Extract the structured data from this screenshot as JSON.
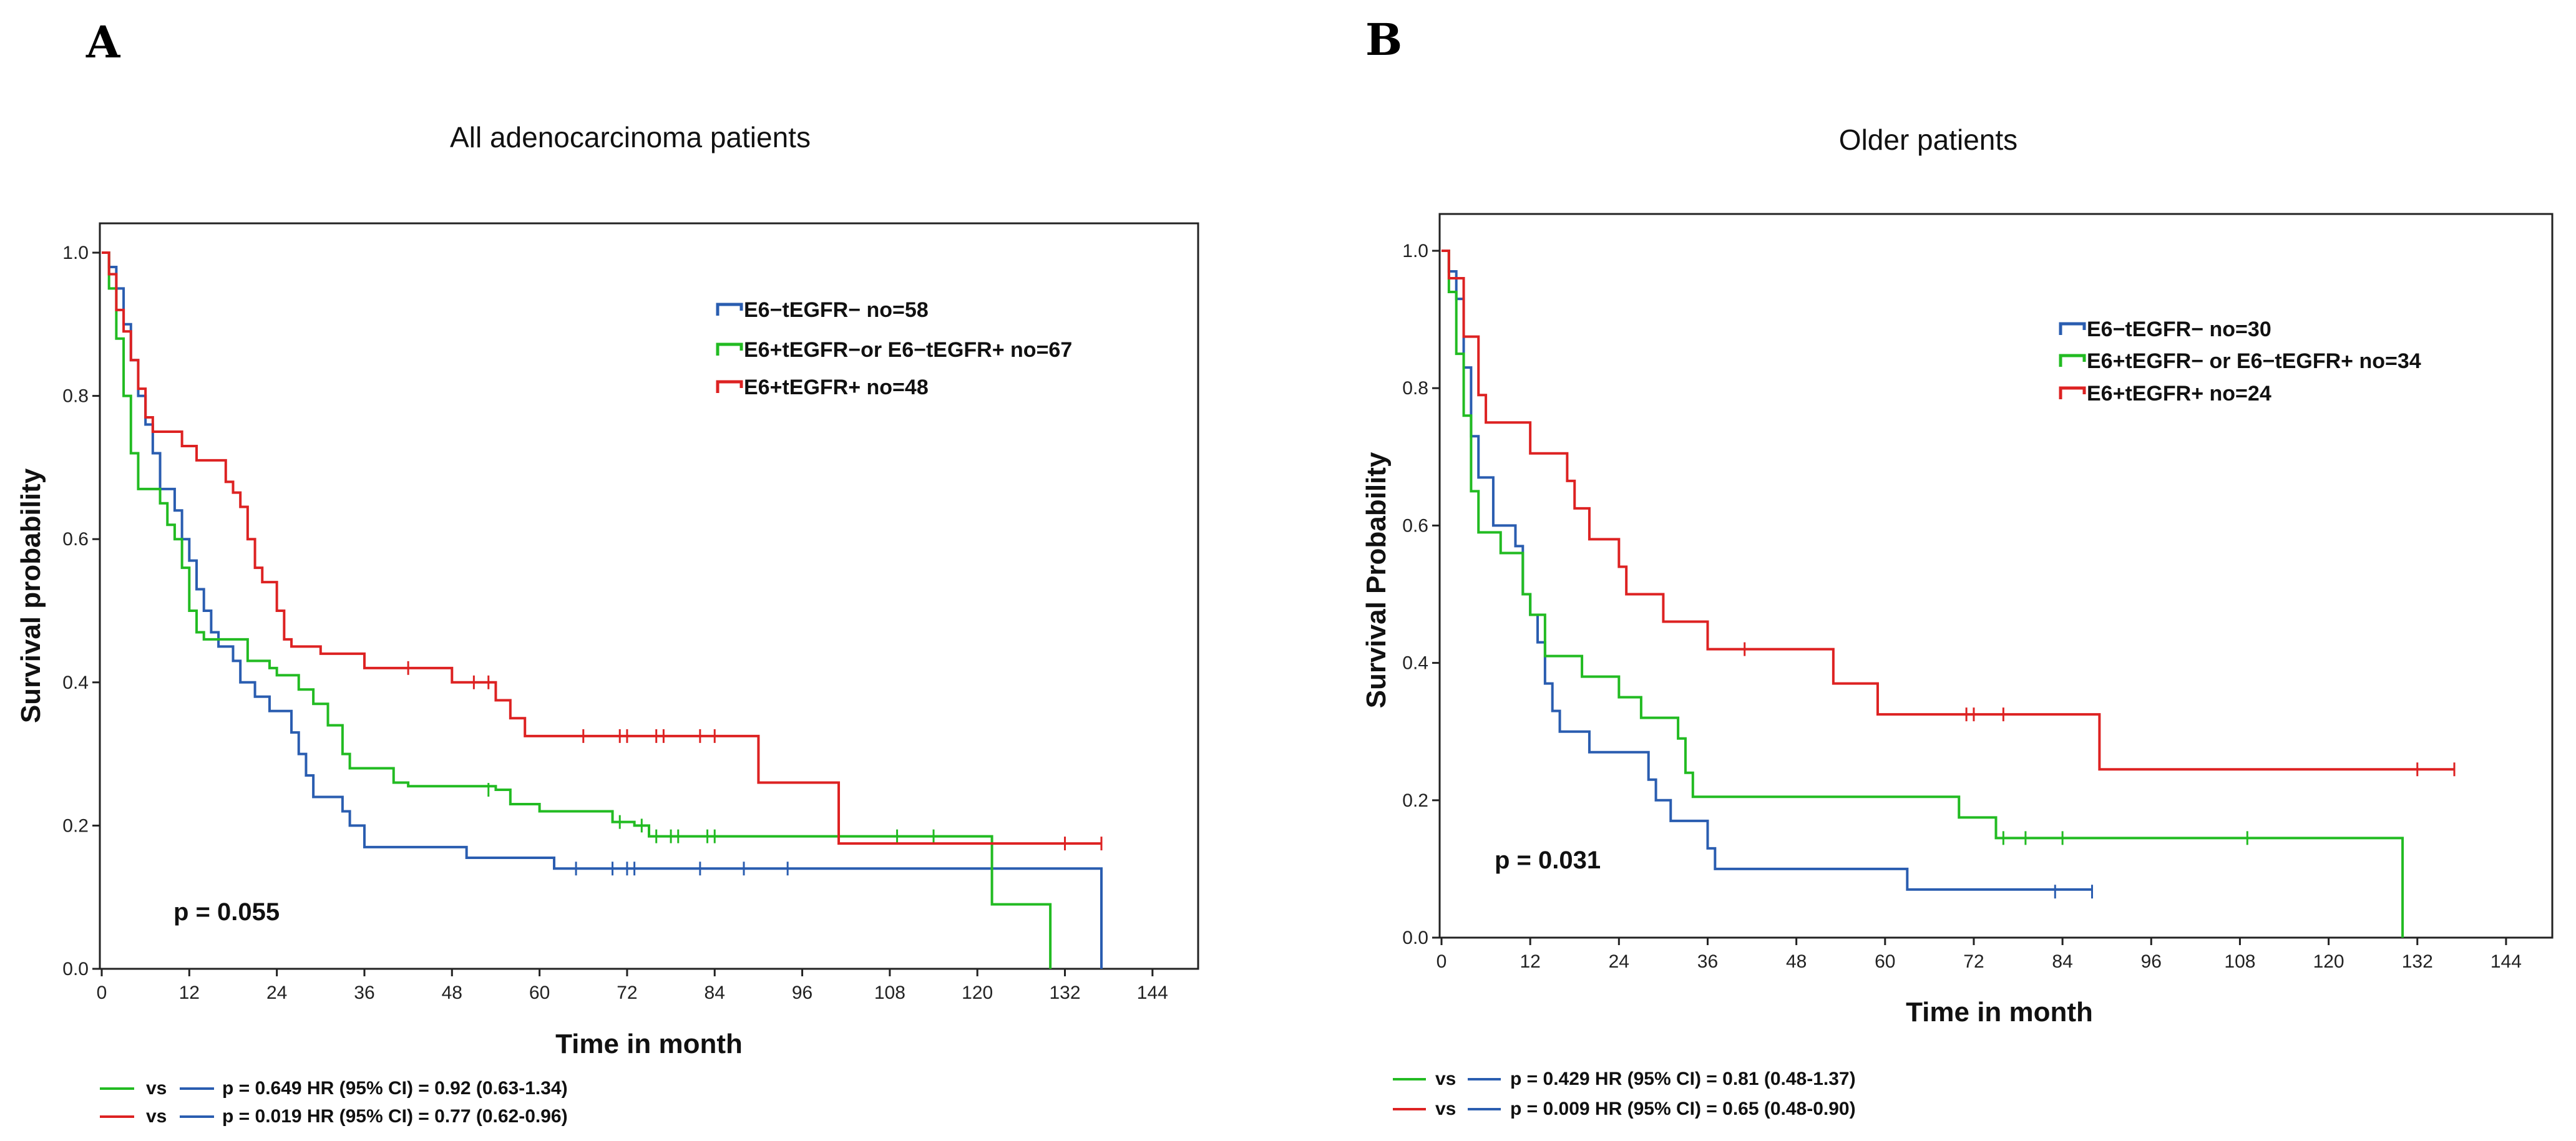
{
  "chart_data": [
    {
      "type": "line",
      "panel": "A",
      "title": "All adenocarcinoma patients",
      "xlabel": "Time in month",
      "ylabel": "Survival probability",
      "xlim": [
        0,
        150
      ],
      "ylim": [
        0,
        1.05
      ],
      "xticks": [
        0,
        12,
        24,
        36,
        48,
        60,
        72,
        84,
        96,
        108,
        120,
        132,
        144
      ],
      "yticks": [
        0.0,
        0.2,
        0.4,
        0.6,
        0.8,
        1.0
      ],
      "legend_position": "top-right",
      "p_value_text": "p = 0.055",
      "series": [
        {
          "name": "E6−tEGFR− no=58",
          "color": "#2a5db0",
          "steps": [
            [
              0,
              1.0
            ],
            [
              1,
              0.98
            ],
            [
              2,
              0.95
            ],
            [
              3,
              0.9
            ],
            [
              4,
              0.85
            ],
            [
              5,
              0.8
            ],
            [
              6,
              0.76
            ],
            [
              7,
              0.72
            ],
            [
              8,
              0.67
            ],
            [
              10,
              0.64
            ],
            [
              11,
              0.6
            ],
            [
              12,
              0.57
            ],
            [
              13,
              0.53
            ],
            [
              14,
              0.5
            ],
            [
              15,
              0.47
            ],
            [
              16,
              0.45
            ],
            [
              18,
              0.43
            ],
            [
              19,
              0.4
            ],
            [
              21,
              0.38
            ],
            [
              23,
              0.36
            ],
            [
              26,
              0.33
            ],
            [
              27,
              0.3
            ],
            [
              28,
              0.27
            ],
            [
              29,
              0.24
            ],
            [
              33,
              0.22
            ],
            [
              34,
              0.2
            ],
            [
              36,
              0.17
            ],
            [
              50,
              0.155
            ],
            [
              62,
              0.14
            ],
            [
              137,
              0.14
            ],
            [
              137,
              0.0
            ]
          ],
          "censors": [
            [
              65,
              0.14
            ],
            [
              70,
              0.14
            ],
            [
              72,
              0.14
            ],
            [
              73,
              0.14
            ],
            [
              82,
              0.14
            ],
            [
              88,
              0.14
            ],
            [
              94,
              0.14
            ]
          ]
        },
        {
          "name": "E6+tEGFR−or E6−tEGFR+ no=67",
          "color": "#22bb22",
          "steps": [
            [
              0,
              1.0
            ],
            [
              1,
              0.95
            ],
            [
              2,
              0.88
            ],
            [
              3,
              0.8
            ],
            [
              4,
              0.72
            ],
            [
              5,
              0.67
            ],
            [
              8,
              0.65
            ],
            [
              9,
              0.62
            ],
            [
              10,
              0.6
            ],
            [
              11,
              0.56
            ],
            [
              12,
              0.5
            ],
            [
              13,
              0.47
            ],
            [
              14,
              0.46
            ],
            [
              20,
              0.43
            ],
            [
              23,
              0.42
            ],
            [
              24,
              0.41
            ],
            [
              27,
              0.39
            ],
            [
              29,
              0.37
            ],
            [
              31,
              0.34
            ],
            [
              33,
              0.3
            ],
            [
              34,
              0.28
            ],
            [
              40,
              0.26
            ],
            [
              42,
              0.255
            ],
            [
              54,
              0.25
            ],
            [
              56,
              0.23
            ],
            [
              60,
              0.22
            ],
            [
              70,
              0.205
            ],
            [
              73,
              0.2
            ],
            [
              75,
              0.185
            ],
            [
              121,
              0.185
            ],
            [
              122,
              0.09
            ],
            [
              130,
              0.09
            ],
            [
              130,
              0.0
            ]
          ],
          "censors": [
            [
              53,
              0.25
            ],
            [
              71,
              0.205
            ],
            [
              74,
              0.2
            ],
            [
              76,
              0.185
            ],
            [
              78,
              0.185
            ],
            [
              79,
              0.185
            ],
            [
              83,
              0.185
            ],
            [
              84,
              0.185
            ],
            [
              109,
              0.185
            ],
            [
              114,
              0.185
            ]
          ]
        },
        {
          "name": "E6+tEGFR+ no=48",
          "color": "#dd2222",
          "steps": [
            [
              0,
              1.0
            ],
            [
              1,
              0.97
            ],
            [
              2,
              0.92
            ],
            [
              3,
              0.89
            ],
            [
              4,
              0.85
            ],
            [
              5,
              0.81
            ],
            [
              6,
              0.77
            ],
            [
              7,
              0.75
            ],
            [
              11,
              0.73
            ],
            [
              13,
              0.71
            ],
            [
              17,
              0.68
            ],
            [
              18,
              0.665
            ],
            [
              19,
              0.645
            ],
            [
              20,
              0.6
            ],
            [
              21,
              0.56
            ],
            [
              22,
              0.54
            ],
            [
              24,
              0.5
            ],
            [
              25,
              0.46
            ],
            [
              26,
              0.45
            ],
            [
              30,
              0.44
            ],
            [
              36,
              0.42
            ],
            [
              48,
              0.4
            ],
            [
              54,
              0.375
            ],
            [
              56,
              0.35
            ],
            [
              58,
              0.325
            ],
            [
              90,
              0.26
            ],
            [
              101,
              0.175
            ],
            [
              137,
              0.175
            ]
          ],
          "censors": [
            [
              42,
              0.42
            ],
            [
              51,
              0.4
            ],
            [
              53,
              0.4
            ],
            [
              66,
              0.325
            ],
            [
              71,
              0.325
            ],
            [
              72,
              0.325
            ],
            [
              76,
              0.325
            ],
            [
              77,
              0.325
            ],
            [
              82,
              0.325
            ],
            [
              84,
              0.325
            ],
            [
              132,
              0.175
            ],
            [
              137,
              0.175
            ]
          ]
        }
      ],
      "comparisons": [
        {
          "color_a": "#22bb22",
          "color_b": "#2a5db0",
          "vs": "vs",
          "text": "p = 0.649  HR (95% CI) = 0.92 (0.63-1.34)"
        },
        {
          "color_a": "#dd2222",
          "color_b": "#2a5db0",
          "vs": "vs",
          "text": "p = 0.019  HR (95% CI) = 0.77 (0.62-0.96)"
        }
      ]
    },
    {
      "type": "line",
      "panel": "B",
      "title": "Older patients",
      "xlabel": "Time in month",
      "ylabel": "Survival Probability",
      "xlim": [
        0,
        150
      ],
      "ylim": [
        0,
        1.05
      ],
      "xticks": [
        0,
        12,
        24,
        36,
        48,
        60,
        72,
        84,
        96,
        108,
        120,
        132,
        144
      ],
      "yticks": [
        0.0,
        0.2,
        0.4,
        0.6,
        0.8,
        1.0
      ],
      "legend_position": "top-right",
      "p_value_text": "p = 0.031",
      "series": [
        {
          "name": "E6−tEGFR− no=30",
          "color": "#2a5db0",
          "steps": [
            [
              0,
              1.0
            ],
            [
              1,
              0.97
            ],
            [
              2,
              0.93
            ],
            [
              3,
              0.83
            ],
            [
              4,
              0.73
            ],
            [
              5,
              0.67
            ],
            [
              7,
              0.6
            ],
            [
              10,
              0.57
            ],
            [
              11,
              0.5
            ],
            [
              12,
              0.47
            ],
            [
              13,
              0.43
            ],
            [
              14,
              0.37
            ],
            [
              15,
              0.33
            ],
            [
              16,
              0.3
            ],
            [
              20,
              0.27
            ],
            [
              28,
              0.23
            ],
            [
              29,
              0.2
            ],
            [
              31,
              0.17
            ],
            [
              36,
              0.13
            ],
            [
              37,
              0.1
            ],
            [
              63,
              0.07
            ],
            [
              88,
              0.07
            ]
          ],
          "censors": [
            [
              83,
              0.067
            ],
            [
              88,
              0.067
            ]
          ]
        },
        {
          "name": "E6+tEGFR− or E6−tEGFR+ no=34",
          "color": "#22bb22",
          "steps": [
            [
              0,
              1.0
            ],
            [
              1,
              0.94
            ],
            [
              2,
              0.85
            ],
            [
              3,
              0.76
            ],
            [
              4,
              0.65
            ],
            [
              5,
              0.59
            ],
            [
              8,
              0.56
            ],
            [
              11,
              0.5
            ],
            [
              12,
              0.47
            ],
            [
              14,
              0.41
            ],
            [
              19,
              0.38
            ],
            [
              24,
              0.35
            ],
            [
              27,
              0.32
            ],
            [
              32,
              0.29
            ],
            [
              33,
              0.24
            ],
            [
              34,
              0.205
            ],
            [
              70,
              0.175
            ],
            [
              75,
              0.145
            ],
            [
              130,
              0.145
            ],
            [
              130,
              0.0
            ]
          ],
          "censors": [
            [
              76,
              0.145
            ],
            [
              79,
              0.145
            ],
            [
              84,
              0.145
            ],
            [
              109,
              0.145
            ]
          ]
        },
        {
          "name": "E6+tEGFR+ no=24",
          "color": "#dd2222",
          "steps": [
            [
              0,
              1.0
            ],
            [
              1,
              0.96
            ],
            [
              3,
              0.875
            ],
            [
              5,
              0.79
            ],
            [
              6,
              0.75
            ],
            [
              12,
              0.705
            ],
            [
              17,
              0.665
            ],
            [
              18,
              0.625
            ],
            [
              20,
              0.58
            ],
            [
              24,
              0.54
            ],
            [
              25,
              0.5
            ],
            [
              30,
              0.46
            ],
            [
              36,
              0.42
            ],
            [
              53,
              0.37
            ],
            [
              59,
              0.325
            ],
            [
              89,
              0.245
            ],
            [
              137,
              0.245
            ]
          ],
          "censors": [
            [
              41,
              0.42
            ],
            [
              71,
              0.325
            ],
            [
              72,
              0.325
            ],
            [
              76,
              0.325
            ],
            [
              132,
              0.245
            ],
            [
              137,
              0.245
            ]
          ]
        }
      ],
      "comparisons": [
        {
          "color_a": "#22bb22",
          "color_b": "#2a5db0",
          "vs": "vs",
          "text": "p = 0.429  HR (95% CI) = 0.81 (0.48-1.37)"
        },
        {
          "color_a": "#dd2222",
          "color_b": "#2a5db0",
          "vs": "vs",
          "text": "p = 0.009  HR (95% CI) = 0.65 (0.48-0.90)"
        }
      ]
    }
  ]
}
